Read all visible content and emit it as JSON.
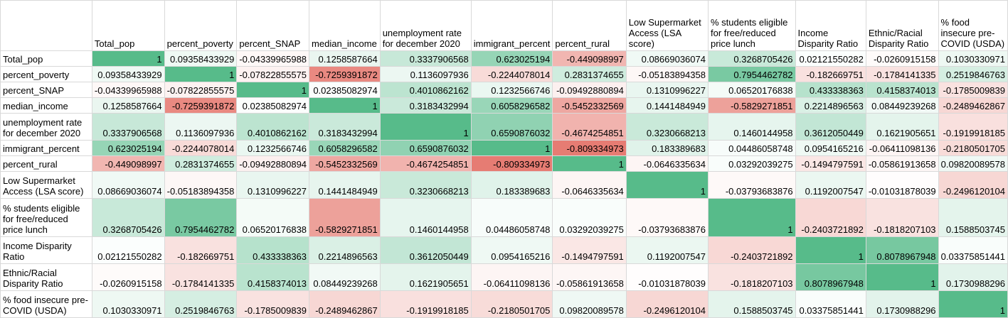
{
  "sheet": {
    "columns": [
      "",
      "Total_pop",
      "percent_poverty",
      "percent_SNAP",
      "median_income",
      "unemployment rate for december 2020",
      "immigrant_percent",
      "percent_rural",
      "Low Supermarket Access (LSA score)",
      "% students eligible for free/reduced price lunch",
      "Income Disparity Ratio",
      "Ethnic/Racial Disparity Ratio",
      "% food insecure pre-COVID (USDA)"
    ],
    "rows": [
      {
        "label": "Total_pop",
        "values": [
          "1",
          "0.09358433929",
          "-0.04339965988",
          "0.1258587664",
          "0.3337906568",
          "0.623025194",
          "-0.449098997",
          "0.08669036074",
          "0.3268705426",
          "0.02121550282",
          "-0.0260915158",
          "0.1030330971"
        ]
      },
      {
        "label": "percent_poverty",
        "values": [
          "0.09358433929",
          "1",
          "-0.07822855575",
          "-0.7259391872",
          "0.1136097936",
          "-0.2244078014",
          "0.2831374655",
          "-0.05183894358",
          "0.7954462782",
          "-0.182669751",
          "-0.1784141335",
          "0.2519846763"
        ]
      },
      {
        "label": "percent_SNAP",
        "values": [
          "-0.04339965988",
          "-0.07822855575",
          "1",
          "0.02385082974",
          "0.4010862162",
          "0.1232566746",
          "-0.09492880894",
          "0.1310996227",
          "0.06520176838",
          "0.433338363",
          "0.4158374013",
          "-0.1785009839"
        ]
      },
      {
        "label": "median_income",
        "values": [
          "0.1258587664",
          "-0.7259391872",
          "0.02385082974",
          "1",
          "0.3183432994",
          "0.6058296582",
          "-0.5452332569",
          "0.1441484949",
          "-0.5829271851",
          "0.2214896563",
          "0.08449239268",
          "-0.2489462867"
        ]
      },
      {
        "label": "unemployment rate for december 2020",
        "values": [
          "0.3337906568",
          "0.1136097936",
          "0.4010862162",
          "0.3183432994",
          "1",
          "0.6590876032",
          "-0.4674254851",
          "0.3230668213",
          "0.1460144958",
          "0.3612050449",
          "0.1621905651",
          "-0.1919918185"
        ]
      },
      {
        "label": "immigrant_percent",
        "values": [
          "0.623025194",
          "-0.2244078014",
          "0.1232566746",
          "0.6058296582",
          "0.6590876032",
          "1",
          "-0.809334973",
          "0.183389683",
          "0.04486058748",
          "0.0954165216",
          "-0.06411098136",
          "-0.2180501705"
        ]
      },
      {
        "label": "percent_rural",
        "values": [
          "-0.449098997",
          "0.2831374655",
          "-0.09492880894",
          "-0.5452332569",
          "-0.4674254851",
          "-0.809334973",
          "1",
          "-0.0646335634",
          "0.03292039275",
          "-0.1494797591",
          "-0.05861913658",
          "0.09820089578"
        ]
      },
      {
        "label": "Low Supermarket Access (LSA score)",
        "values": [
          "0.08669036074",
          "-0.05183894358",
          "0.1310996227",
          "0.1441484949",
          "0.3230668213",
          "0.183389683",
          "-0.0646335634",
          "1",
          "-0.03793683876",
          "0.1192007547",
          "-0.01031878039",
          "-0.2496120104"
        ]
      },
      {
        "label": "% students eligible for free/reduced price lunch",
        "values": [
          "0.3268705426",
          "0.7954462782",
          "0.06520176838",
          "-0.5829271851",
          "0.1460144958",
          "0.04486058748",
          "0.03292039275",
          "-0.03793683876",
          "1",
          "-0.2403721892",
          "-0.1818207103",
          "0.1588503745"
        ]
      },
      {
        "label": "Income Disparity Ratio",
        "values": [
          "0.02121550282",
          "-0.182669751",
          "0.433338363",
          "0.2214896563",
          "0.3612050449",
          "0.0954165216",
          "-0.1494797591",
          "0.1192007547",
          "-0.2403721892",
          "1",
          "0.8078967948",
          "0.03375851441"
        ]
      },
      {
        "label": "Ethnic/Racial Disparity Ratio",
        "values": [
          "-0.0260915158",
          "-0.1784141335",
          "0.4158374013",
          "0.08449239268",
          "0.1621905651",
          "-0.06411098136",
          "-0.05861913658",
          "-0.01031878039",
          "-0.1818207103",
          "0.8078967948",
          "1",
          "0.1730988296"
        ]
      },
      {
        "label": "% food insecure pre-COVID (USDA)",
        "values": [
          "0.1030330971",
          "0.2519846763",
          "-0.1785009839",
          "-0.2489462867",
          "-0.1919918185",
          "-0.2180501705",
          "0.09820089578",
          "-0.2496120104",
          "0.1588503745",
          "0.03375851441",
          "0.1730988296",
          "1"
        ]
      }
    ],
    "colors": {
      "positive": "#57bb8a",
      "neutral": "#ffffff",
      "negative": "#e67c73",
      "gridline": "#d9d9d9"
    }
  }
}
